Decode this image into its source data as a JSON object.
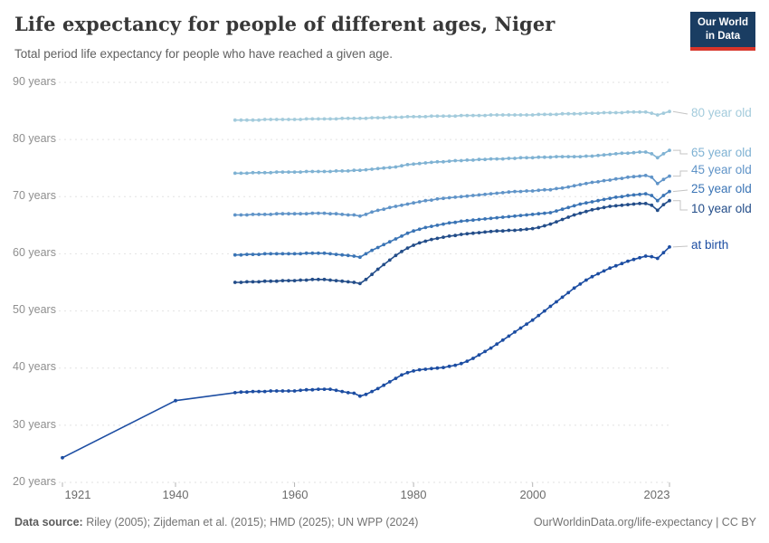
{
  "header": {
    "title": "Life expectancy for people of different ages, Niger",
    "subtitle": "Total period life expectancy for people who have reached a given age."
  },
  "logo": {
    "line1": "Our World",
    "line2": "in Data",
    "bg_color": "#1a3d62",
    "accent_color": "#d8352a"
  },
  "footer": {
    "datasource_label": "Data source:",
    "datasource_text": " Riley (2005); Zijdeman et al. (2015); HMD (2025); UN WPP (2024)",
    "right_text": "OurWorldinData.org/life-expectancy | CC BY"
  },
  "chart_data": {
    "type": "line",
    "title": "Life expectancy for people of different ages, Niger",
    "xlabel": "",
    "ylabel": "years",
    "grid": "horizontal-dashed",
    "legend_position": "right-edge-labels",
    "x_axis": {
      "range": [
        1921,
        2023
      ],
      "ticks": [
        1921,
        1940,
        1960,
        1980,
        2000,
        2023
      ],
      "tick_labels": [
        "1921",
        "1940",
        "1960",
        "1980",
        "2000",
        "2023"
      ]
    },
    "y_axis": {
      "range": [
        20,
        90
      ],
      "ticks": [
        90,
        80,
        70,
        60,
        50,
        40,
        30,
        20
      ],
      "tick_labels": [
        "90 years",
        "80 years",
        "70 years",
        "60 years",
        "50 years",
        "40 years",
        "30 years",
        "20 years"
      ]
    },
    "series": [
      {
        "label": "80 year old",
        "color": "#a3cbdc",
        "start_year": 1950,
        "pre_points": [],
        "values": [
          83.4,
          83.4,
          83.4,
          83.4,
          83.4,
          83.5,
          83.5,
          83.5,
          83.5,
          83.5,
          83.5,
          83.5,
          83.6,
          83.6,
          83.6,
          83.6,
          83.6,
          83.6,
          83.7,
          83.7,
          83.7,
          83.7,
          83.7,
          83.8,
          83.8,
          83.8,
          83.9,
          83.9,
          83.9,
          84.0,
          84.0,
          84.0,
          84.0,
          84.1,
          84.1,
          84.1,
          84.1,
          84.1,
          84.2,
          84.2,
          84.2,
          84.2,
          84.2,
          84.3,
          84.3,
          84.3,
          84.3,
          84.3,
          84.3,
          84.3,
          84.3,
          84.4,
          84.4,
          84.4,
          84.4,
          84.5,
          84.5,
          84.5,
          84.5,
          84.6,
          84.6,
          84.6,
          84.7,
          84.7,
          84.7,
          84.7,
          84.8,
          84.8,
          84.8,
          84.8,
          84.6,
          84.3,
          84.6,
          84.9
        ]
      },
      {
        "label": "65 year old",
        "color": "#7fb2d3",
        "start_year": 1950,
        "pre_points": [],
        "values": [
          74.1,
          74.1,
          74.1,
          74.2,
          74.2,
          74.2,
          74.2,
          74.3,
          74.3,
          74.3,
          74.3,
          74.3,
          74.4,
          74.4,
          74.4,
          74.4,
          74.4,
          74.5,
          74.5,
          74.5,
          74.6,
          74.6,
          74.7,
          74.8,
          74.9,
          75.0,
          75.1,
          75.2,
          75.4,
          75.6,
          75.7,
          75.8,
          75.9,
          76.0,
          76.1,
          76.1,
          76.2,
          76.3,
          76.3,
          76.4,
          76.4,
          76.5,
          76.5,
          76.6,
          76.6,
          76.6,
          76.7,
          76.7,
          76.8,
          76.8,
          76.8,
          76.9,
          76.9,
          76.9,
          77.0,
          77.0,
          77.0,
          77.0,
          77.0,
          77.1,
          77.1,
          77.2,
          77.3,
          77.4,
          77.5,
          77.6,
          77.6,
          77.7,
          77.8,
          77.8,
          77.5,
          76.8,
          77.5,
          78.1
        ]
      },
      {
        "label": "45 year old",
        "color": "#6094c8",
        "start_year": 1950,
        "pre_points": [],
        "values": [
          66.8,
          66.8,
          66.8,
          66.9,
          66.9,
          66.9,
          66.9,
          67.0,
          67.0,
          67.0,
          67.0,
          67.0,
          67.0,
          67.1,
          67.1,
          67.1,
          67.0,
          67.0,
          66.9,
          66.8,
          66.8,
          66.6,
          66.9,
          67.3,
          67.6,
          67.8,
          68.1,
          68.3,
          68.5,
          68.7,
          68.9,
          69.1,
          69.3,
          69.4,
          69.6,
          69.7,
          69.8,
          69.9,
          70.0,
          70.1,
          70.2,
          70.3,
          70.4,
          70.5,
          70.6,
          70.7,
          70.8,
          70.9,
          70.9,
          71.0,
          71.0,
          71.1,
          71.2,
          71.2,
          71.4,
          71.5,
          71.7,
          71.9,
          72.1,
          72.3,
          72.5,
          72.6,
          72.8,
          72.9,
          73.1,
          73.2,
          73.4,
          73.5,
          73.6,
          73.7,
          73.4,
          72.3,
          73.0,
          73.6
        ]
      },
      {
        "label": "25 year old",
        "color": "#3a74b5",
        "start_year": 1950,
        "pre_points": [],
        "values": [
          59.8,
          59.8,
          59.9,
          59.9,
          59.9,
          60.0,
          60.0,
          60.0,
          60.0,
          60.0,
          60.0,
          60.0,
          60.1,
          60.1,
          60.1,
          60.1,
          60.0,
          59.9,
          59.8,
          59.7,
          59.6,
          59.4,
          60.0,
          60.6,
          61.1,
          61.6,
          62.1,
          62.6,
          63.1,
          63.6,
          64.0,
          64.3,
          64.6,
          64.8,
          65.0,
          65.2,
          65.4,
          65.5,
          65.7,
          65.8,
          65.9,
          66.0,
          66.1,
          66.2,
          66.3,
          66.4,
          66.5,
          66.6,
          66.7,
          66.8,
          66.9,
          67.0,
          67.1,
          67.2,
          67.5,
          67.8,
          68.1,
          68.4,
          68.7,
          68.9,
          69.1,
          69.3,
          69.5,
          69.7,
          69.9,
          70.0,
          70.2,
          70.3,
          70.4,
          70.5,
          70.2,
          69.3,
          70.2,
          70.9
        ]
      },
      {
        "label": "10 year old",
        "color": "#234d89",
        "start_year": 1950,
        "pre_points": [],
        "values": [
          55.0,
          55.0,
          55.1,
          55.1,
          55.1,
          55.2,
          55.2,
          55.2,
          55.3,
          55.3,
          55.3,
          55.4,
          55.4,
          55.5,
          55.5,
          55.5,
          55.4,
          55.3,
          55.2,
          55.1,
          55.0,
          54.8,
          55.5,
          56.4,
          57.3,
          58.1,
          58.9,
          59.7,
          60.4,
          61.0,
          61.5,
          61.9,
          62.2,
          62.5,
          62.7,
          62.9,
          63.1,
          63.2,
          63.4,
          63.5,
          63.6,
          63.7,
          63.8,
          63.9,
          64.0,
          64.0,
          64.1,
          64.1,
          64.2,
          64.3,
          64.4,
          64.6,
          64.9,
          65.2,
          65.6,
          66.0,
          66.4,
          66.8,
          67.1,
          67.4,
          67.7,
          67.9,
          68.1,
          68.3,
          68.4,
          68.5,
          68.6,
          68.7,
          68.8,
          68.8,
          68.5,
          67.6,
          68.6,
          69.3
        ]
      },
      {
        "label": "at birth",
        "color": "#1c4da2",
        "start_year": 1950,
        "pre_points": [
          [
            1921,
            24.3
          ],
          [
            1940,
            34.3
          ]
        ],
        "values": [
          35.7,
          35.8,
          35.8,
          35.9,
          35.9,
          35.9,
          36.0,
          36.0,
          36.0,
          36.0,
          36.0,
          36.1,
          36.2,
          36.2,
          36.3,
          36.3,
          36.3,
          36.1,
          35.9,
          35.7,
          35.6,
          35.1,
          35.4,
          35.9,
          36.4,
          37.0,
          37.6,
          38.2,
          38.8,
          39.2,
          39.5,
          39.7,
          39.8,
          39.9,
          40.0,
          40.1,
          40.3,
          40.5,
          40.8,
          41.2,
          41.7,
          42.3,
          42.9,
          43.5,
          44.2,
          44.9,
          45.6,
          46.3,
          47.0,
          47.7,
          48.4,
          49.2,
          50.0,
          50.8,
          51.6,
          52.4,
          53.2,
          54.0,
          54.7,
          55.4,
          56.0,
          56.5,
          57.0,
          57.5,
          57.9,
          58.3,
          58.7,
          59.0,
          59.3,
          59.6,
          59.5,
          59.2,
          60.2,
          61.2
        ]
      }
    ]
  }
}
